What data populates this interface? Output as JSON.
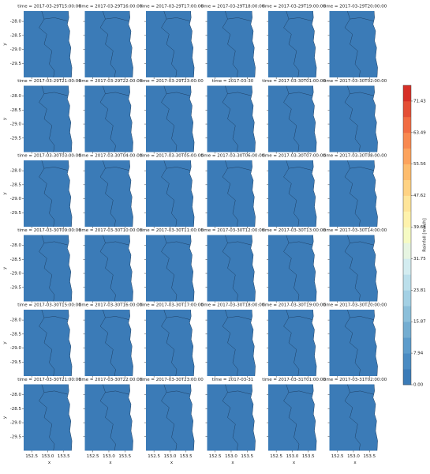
{
  "chart_data": {
    "type": "facet-map",
    "panels": [
      "time = 2017-03-29T15:00:00",
      "time = 2017-03-29T16:00:00",
      "time = 2017-03-29T17:00:00",
      "time = 2017-03-29T18:00:00",
      "time = 2017-03-29T19:00:00",
      "time = 2017-03-29T20:00:00",
      "time = 2017-03-29T21:00:00",
      "time = 2017-03-29T22:00:00",
      "time = 2017-03-29T23:00:00",
      "time = 2017-03-30",
      "time = 2017-03-30T01:00:00",
      "time = 2017-03-30T02:00:00",
      "time = 2017-03-30T03:00:00",
      "time = 2017-03-30T04:00:00",
      "time = 2017-03-30T05:00:00",
      "time = 2017-03-30T06:00:00",
      "time = 2017-03-30T07:00:00",
      "time = 2017-03-30T08:00:00",
      "time = 2017-03-30T09:00:00",
      "time = 2017-03-30T10:00:00",
      "time = 2017-03-30T11:00:00",
      "time = 2017-03-30T12:00:00",
      "time = 2017-03-30T13:00:00",
      "time = 2017-03-30T14:00:00",
      "time = 2017-03-30T15:00:00",
      "time = 2017-03-30T16:00:00",
      "time = 2017-03-30T17:00:00",
      "time = 2017-03-30T18:00:00",
      "time = 2017-03-30T19:00:00",
      "time = 2017-03-30T20:00:00",
      "time = 2017-03-30T21:00:00",
      "time = 2017-03-30T22:00:00",
      "time = 2017-03-30T23:00:00",
      "time = 2017-03-31",
      "time = 2017-03-31T01:00:00",
      "time = 2017-03-31T02:00:00"
    ],
    "columns": 6,
    "x_label": "x",
    "y_label": "y",
    "xlim": [
      152.25,
      153.85
    ],
    "xticks": [
      152.5,
      {
        "value": 153,
        "label": "153.0"
      },
      153.5
    ],
    "ylim": [
      -30.0,
      -27.63
    ],
    "yticks": [
      {
        "value": -28,
        "label": "-28.0"
      },
      -28.5,
      {
        "value": -29,
        "label": "-29.0"
      },
      -29.5
    ],
    "colorbar_label": "Rainfall [mm/h]",
    "clim": [
      0,
      75.4
    ],
    "cticks": [
      {
        "value": 0,
        "label": "0.00"
      },
      7.94,
      15.87,
      23.81,
      31.75,
      39.68,
      47.62,
      55.56,
      63.49,
      71.43
    ],
    "colors": [
      "#3b7bb7",
      "#4a8bc2",
      "#5d9ccb",
      "#74add1",
      "#8bbfda",
      "#a3d0e4",
      "#bbdfeb",
      "#d3ecf0",
      "#e7f5e2",
      "#f6fbc4",
      "#fef2ac",
      "#fee59a",
      "#fed283",
      "#fdbc6d",
      "#fca35d",
      "#f88950",
      "#f16c43",
      "#e44f36",
      "#d62f27"
    ]
  }
}
